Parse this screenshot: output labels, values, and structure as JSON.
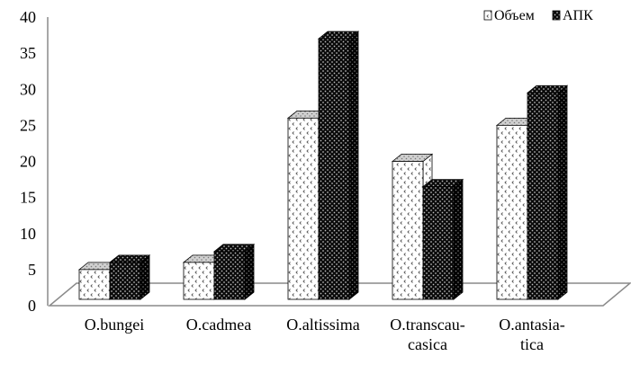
{
  "chart_data": {
    "type": "bar",
    "title": "",
    "xlabel": "",
    "ylabel": "",
    "ylim": [
      0,
      40
    ],
    "yticks": [
      0,
      5,
      10,
      15,
      20,
      25,
      30,
      35,
      40
    ],
    "categories": [
      [
        "O.bungei"
      ],
      [
        "O.cadmea"
      ],
      [
        "O.altissima"
      ],
      [
        "O.transcau-",
        "casica"
      ],
      [
        "O.antasia-",
        "tica"
      ]
    ],
    "series": [
      {
        "name": "Объем",
        "values": [
          5,
          6,
          26,
          20,
          25
        ],
        "pattern": "dots-on-white"
      },
      {
        "name": "АПК",
        "values": [
          6,
          7.5,
          37,
          16.5,
          29.5
        ],
        "pattern": "dots-on-black"
      }
    ],
    "legend_position": "top-right",
    "grid": false,
    "style": "3d-column"
  }
}
